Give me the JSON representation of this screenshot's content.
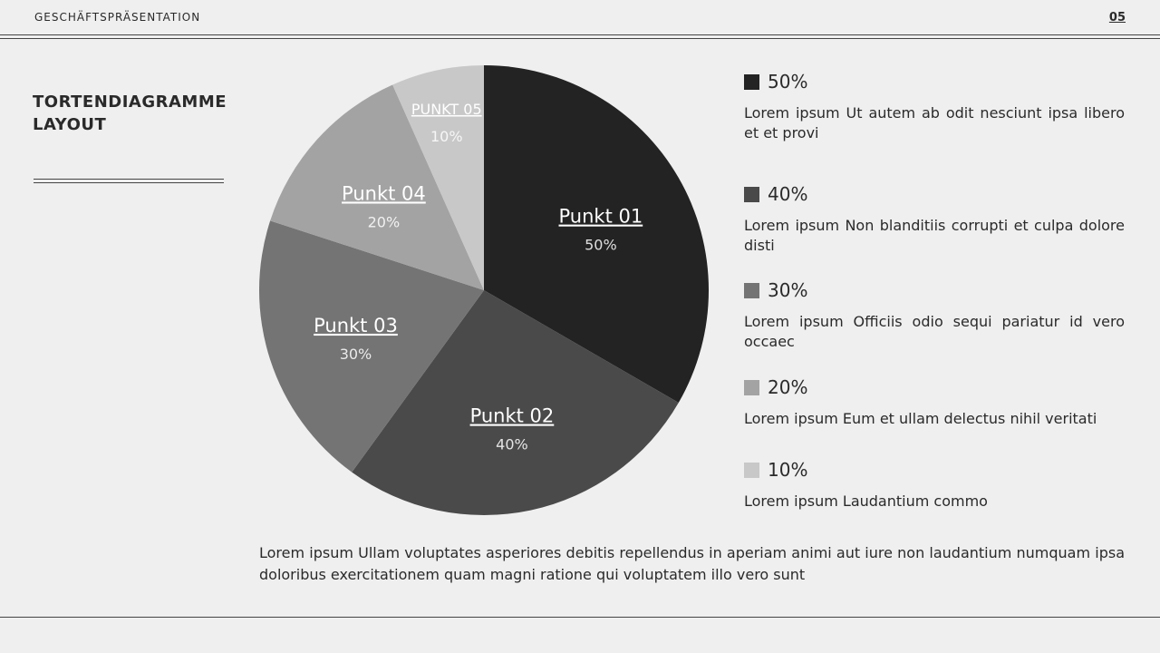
{
  "header": {
    "title": "GESCHÄFTSPRÄSENTATION",
    "page": "05"
  },
  "heading": "TORTENDIAGRAMME LAYOUT",
  "chart_data": {
    "type": "pie",
    "categories": [
      "Punkt 01",
      "Punkt 02",
      "Punkt 03",
      "Punkt 04",
      "PUNKT 05"
    ],
    "values": [
      50,
      40,
      30,
      20,
      10
    ],
    "value_labels": [
      "50%",
      "40%",
      "30%",
      "20%",
      "10%"
    ],
    "colors": [
      "#232323",
      "#4a4a4a",
      "#747474",
      "#a3a3a3",
      "#c8c8c8"
    ]
  },
  "descriptions": [
    "Lorem ipsum Ut autem ab odit nesciunt ipsa libero et et provi",
    "Lorem ipsum Non blanditiis corrupti et culpa dolore disti",
    "Lorem ipsum Officiis odio sequi pariatur id vero occaec",
    "Lorem ipsum Eum et ullam delectus nihil veritati",
    "Lorem ipsum Laudantium commo"
  ],
  "footer": "Lorem ipsum Ullam voluptates asperiores debitis repellendus in aperiam animi aut iure non laudantium numquam ipsa doloribus exercitationem quam magni ratione qui voluptatem illo vero sunt"
}
